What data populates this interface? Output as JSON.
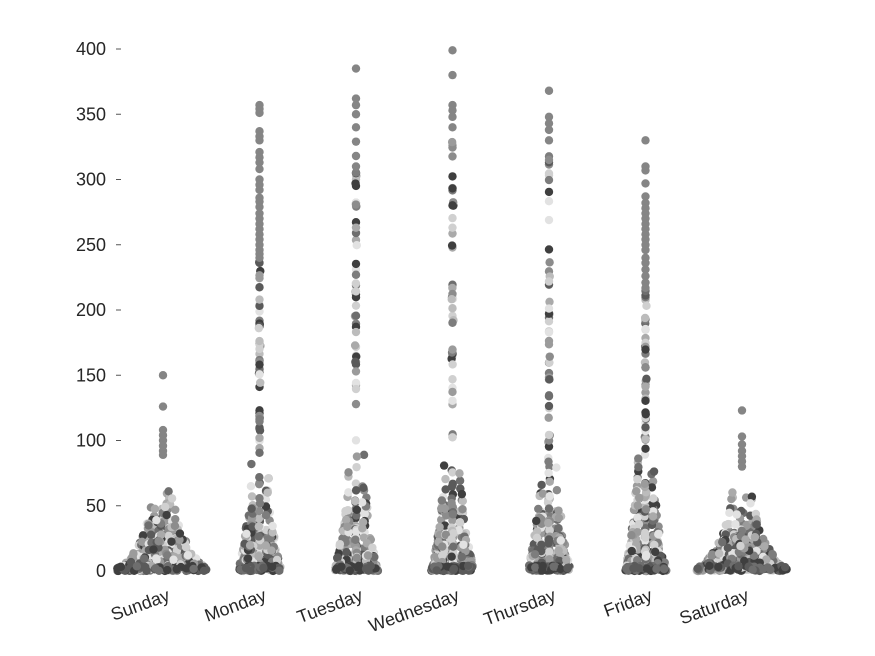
{
  "chart_data": {
    "type": "scatter",
    "subtype": "swarm",
    "title": "",
    "xlabel": "",
    "ylabel": "",
    "ylim": [
      0,
      400
    ],
    "yticks": [
      0,
      50,
      100,
      150,
      200,
      250,
      300,
      350,
      400
    ],
    "categories": [
      "Sunday",
      "Monday",
      "Tuesday",
      "Wednesday",
      "Thursday",
      "Friday",
      "Saturday"
    ],
    "grid": false,
    "legend": "none",
    "point_colors": [
      "#3f3f3f",
      "#5a5a5a",
      "#6e6e6e",
      "#7d7d7d",
      "#8c8c8c",
      "#9b9b9b",
      "#aaaaaa",
      "#bcbcbc",
      "#d0d0d0",
      "#e2e2e2"
    ],
    "outlier_color": "#858585",
    "series": [
      {
        "category": "Sunday",
        "max": 150,
        "width_scale": 1.0,
        "sample_count": 380,
        "outliers": [
          150,
          126,
          108,
          104,
          100,
          96,
          92,
          89
        ]
      },
      {
        "category": "Monday",
        "max": 357,
        "width_scale": 0.22,
        "sample_count": 330,
        "outliers": [
          357,
          354,
          351,
          337,
          333,
          330,
          321,
          317,
          313,
          308,
          300,
          296,
          292,
          286,
          283,
          279,
          274,
          270,
          266,
          262,
          258,
          254,
          250,
          246,
          243,
          240
        ]
      },
      {
        "category": "Tuesday",
        "max": 385,
        "width_scale": 0.22,
        "sample_count": 330,
        "outliers": [
          385,
          362,
          357,
          350,
          340,
          329,
          318,
          310
        ]
      },
      {
        "category": "Wednesday",
        "max": 399,
        "width_scale": 0.22,
        "sample_count": 330,
        "outliers": [
          399,
          380,
          357,
          353,
          348,
          340
        ]
      },
      {
        "category": "Thursday",
        "max": 368,
        "width_scale": 0.22,
        "sample_count": 330,
        "outliers": [
          368,
          348,
          343,
          338,
          330
        ]
      },
      {
        "category": "Friday",
        "max": 330,
        "width_scale": 0.22,
        "sample_count": 330,
        "outliers": [
          330,
          310,
          307,
          297,
          287,
          282,
          278,
          274,
          270,
          266,
          262,
          258,
          254,
          250,
          246,
          240,
          236,
          231,
          226,
          221,
          217
        ]
      },
      {
        "category": "Saturday",
        "max": 123,
        "width_scale": 1.0,
        "sample_count": 360,
        "outliers": [
          123,
          103,
          97,
          92,
          88,
          84,
          80
        ]
      }
    ]
  }
}
